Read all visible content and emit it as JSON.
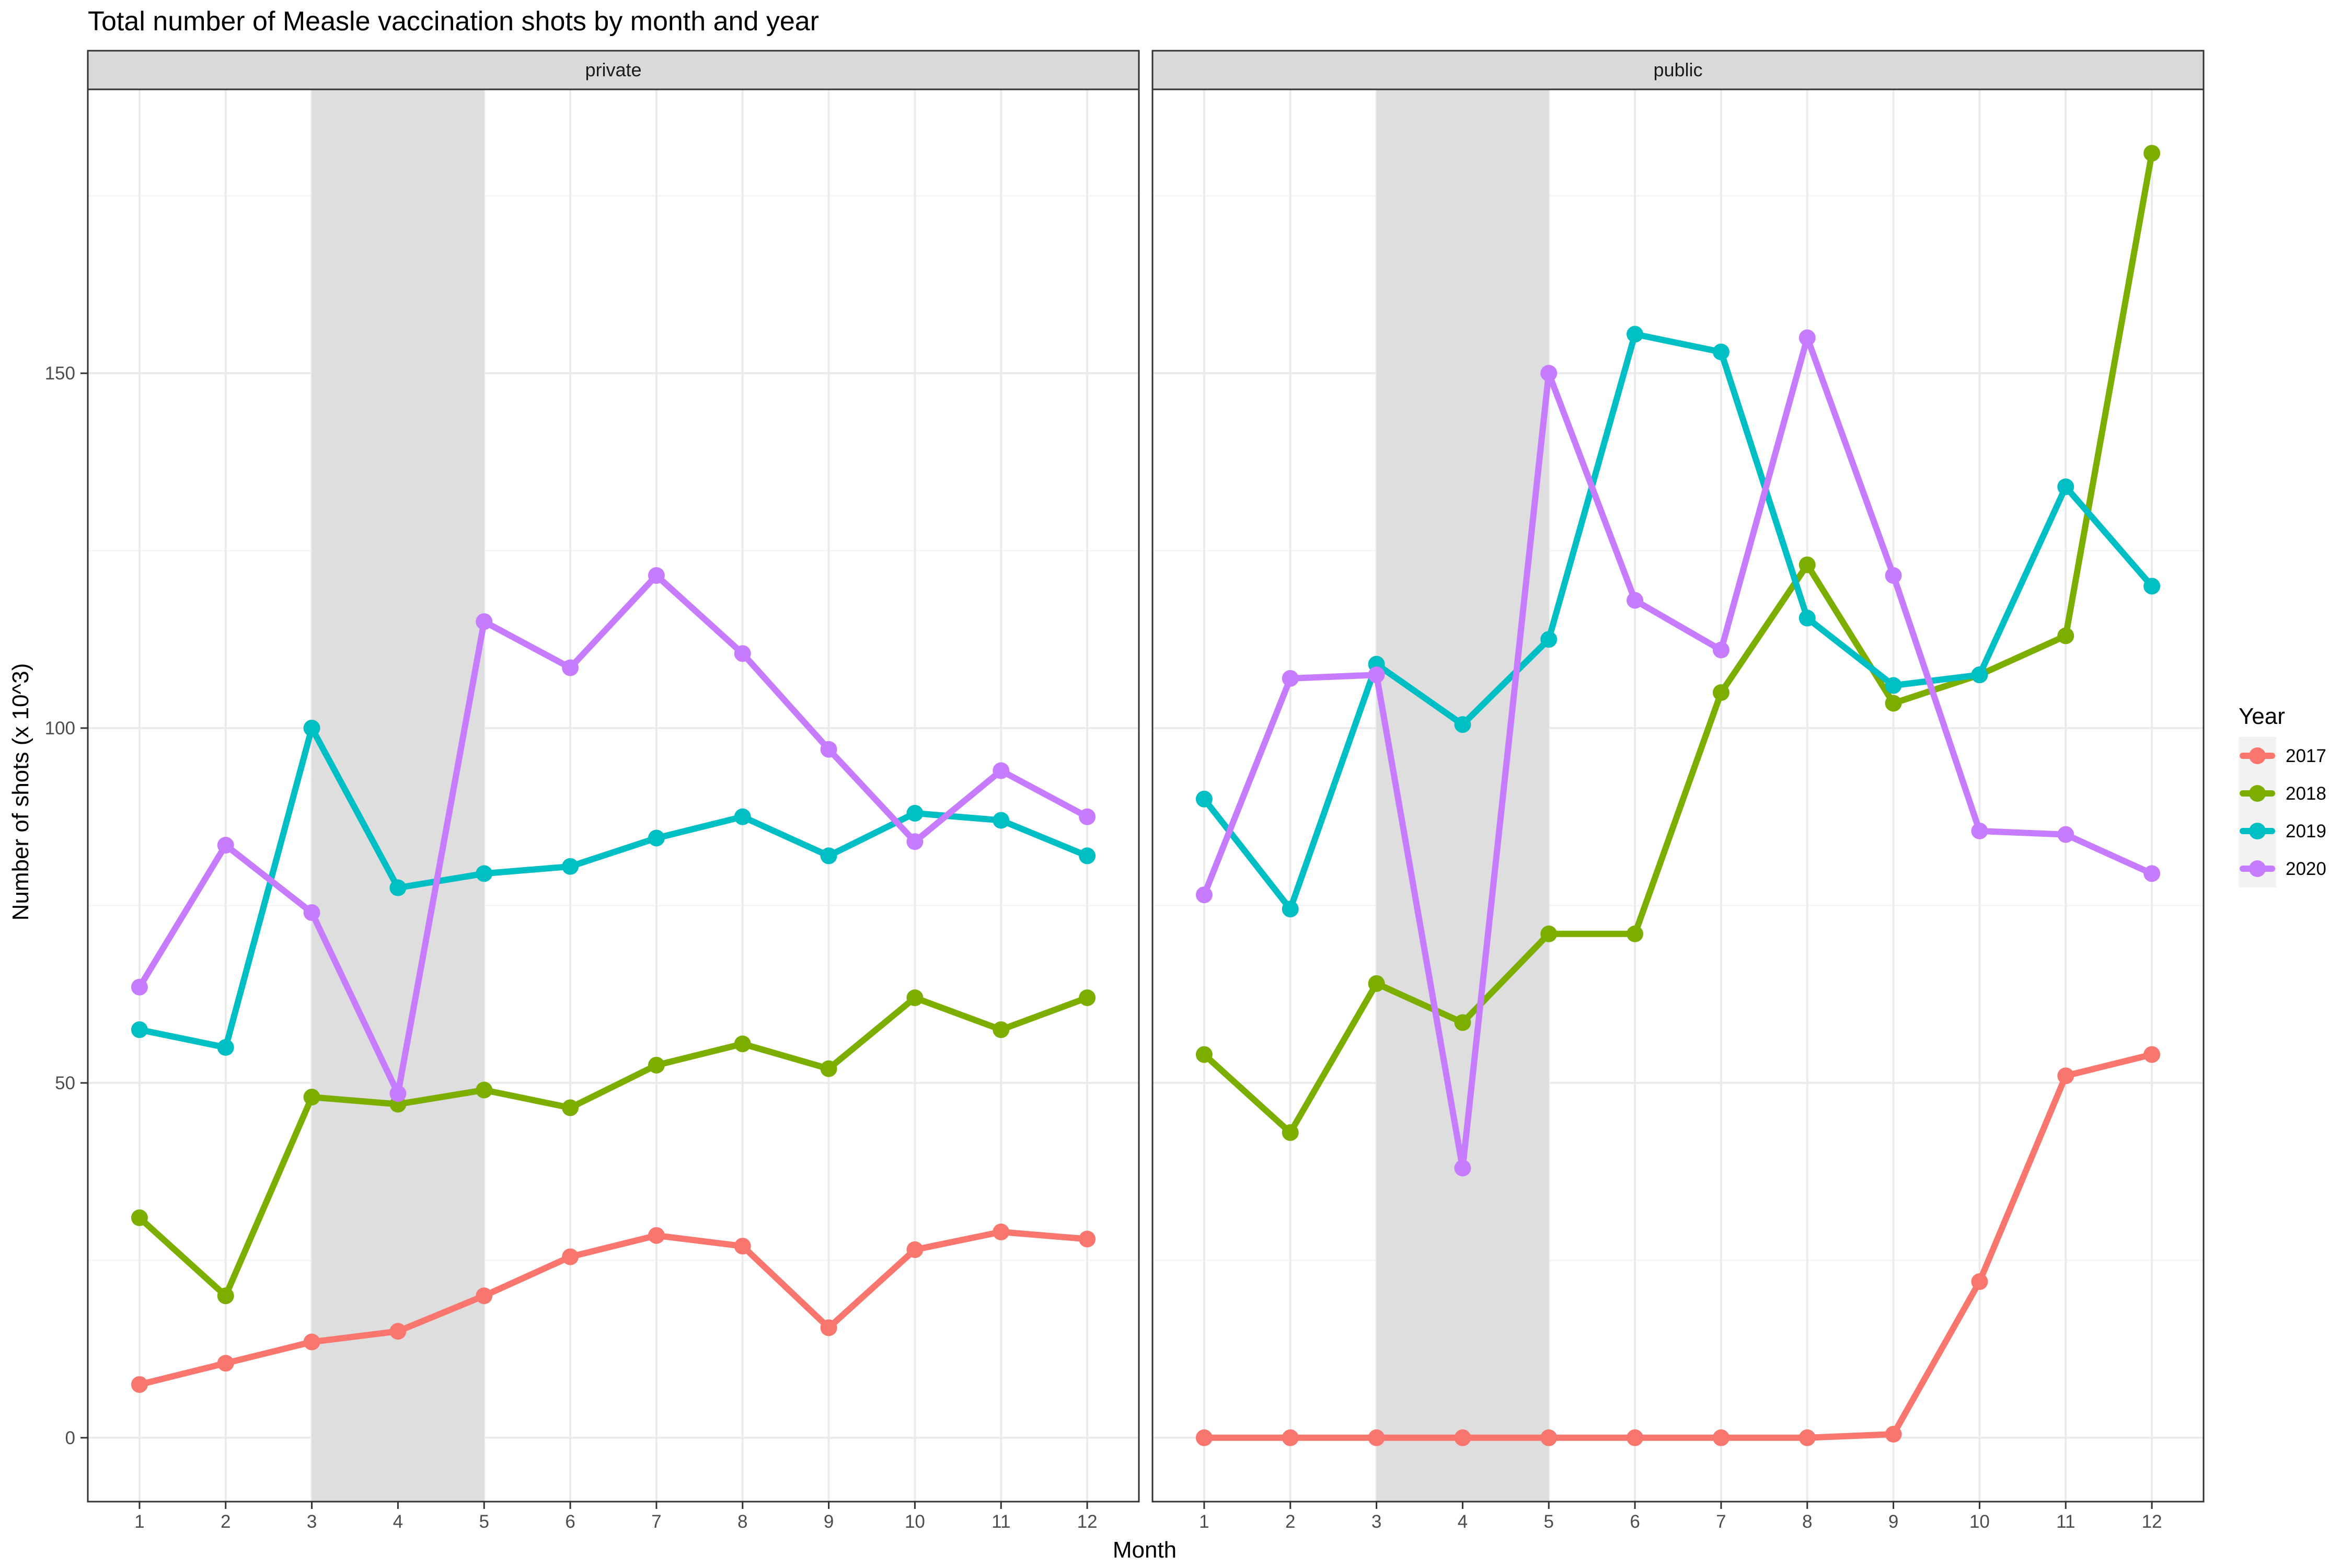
{
  "chart_data": {
    "type": "line",
    "title": "Total number of Measle vaccination shots by month and year",
    "xlabel": "Month",
    "ylabel": "Number of shots (x 10^3)",
    "x": [
      1,
      2,
      3,
      4,
      5,
      6,
      7,
      8,
      9,
      10,
      11,
      12
    ],
    "xlim": [
      0.4,
      12.6
    ],
    "ylim": [
      -9,
      190
    ],
    "yticks": [
      0,
      50,
      100,
      150
    ],
    "grid": true,
    "shaded_x_range": [
      3,
      5
    ],
    "legend": {
      "title": "Year",
      "position": "right"
    },
    "panels": [
      {
        "name": "private",
        "series": [
          {
            "name": "2017",
            "color": "#F8766D",
            "values": [
              7.5,
              10.5,
              13.5,
              15,
              20,
              25.5,
              28.5,
              27,
              15.5,
              26.5,
              29,
              28
            ]
          },
          {
            "name": "2018",
            "color": "#7CAE00",
            "values": [
              31,
              20,
              48,
              47,
              49,
              46.5,
              52.5,
              55.5,
              52,
              62,
              57.5,
              62
            ]
          },
          {
            "name": "2019",
            "color": "#00BFC4",
            "values": [
              57.5,
              55,
              100,
              77.5,
              79.5,
              80.5,
              84.5,
              87.5,
              82,
              88,
              87,
              82
            ]
          },
          {
            "name": "2020",
            "color": "#C77CFF",
            "values": [
              63.5,
              83.5,
              74,
              48.5,
              115,
              108.5,
              121.5,
              110.5,
              97,
              84,
              94,
              87.5
            ]
          }
        ]
      },
      {
        "name": "public",
        "series": [
          {
            "name": "2017",
            "color": "#F8766D",
            "values": [
              0,
              0,
              0,
              0,
              0,
              0,
              0,
              0,
              0.5,
              22,
              51,
              54
            ]
          },
          {
            "name": "2018",
            "color": "#7CAE00",
            "values": [
              54,
              43,
              64,
              58.5,
              71,
              71,
              105,
              123,
              103.5,
              107.5,
              113,
              181
            ]
          },
          {
            "name": "2019",
            "color": "#00BFC4",
            "values": [
              90,
              74.5,
              109,
              100.5,
              112.5,
              155.5,
              153,
              115.5,
              106,
              107.5,
              134,
              120
            ]
          },
          {
            "name": "2020",
            "color": "#C77CFF",
            "values": [
              76.5,
              107,
              107.5,
              38,
              150,
              118,
              111,
              155,
              121.5,
              85.5,
              85,
              79.5
            ]
          }
        ]
      }
    ]
  }
}
